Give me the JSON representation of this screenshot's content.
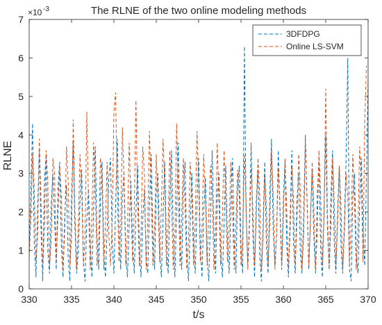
{
  "chart_data": {
    "type": "line",
    "title": "The RLNE of the two online modeling methods",
    "xlabel": "t/s",
    "ylabel": "RLNE",
    "y_multiplier": "×10",
    "y_multiplier_exp": "-3",
    "xlim": [
      330,
      370
    ],
    "ylim": [
      0,
      7
    ],
    "x_ticks": [
      330,
      335,
      340,
      345,
      350,
      355,
      360,
      365,
      370
    ],
    "y_ticks": [
      0,
      1,
      2,
      3,
      4,
      5,
      6,
      7
    ],
    "grid": false,
    "legend_position": "top-right",
    "series": [
      {
        "name": "3DFDPG",
        "color": "#0072BD",
        "line_style": "dashed",
        "x_start": 330,
        "x_step": 0.2,
        "values": [
          1.0,
          2.5,
          4.3,
          1.2,
          0.3,
          2.1,
          3.6,
          1.5,
          0.2,
          2.8,
          3.5,
          1.0,
          0.4,
          2.2,
          3.0,
          1.8,
          0.5,
          2.6,
          3.3,
          1.1,
          0.3,
          1.9,
          2.7,
          0.8,
          0.2,
          2.4,
          3.8,
          1.6,
          0.4,
          1.0,
          2.3,
          3.1,
          0.7,
          0.2,
          1.8,
          2.6,
          1.2,
          0.3,
          2.0,
          3.7,
          1.4,
          0.5,
          2.2,
          3.3,
          1.0,
          0.3,
          1.5,
          2.9,
          3.4,
          1.2,
          0.4,
          2.1,
          3.9,
          1.6,
          0.5,
          2.4,
          3.0,
          0.9,
          0.3,
          1.7,
          2.8,
          1.3,
          0.4,
          2.0,
          3.2,
          1.1,
          0.3,
          1.8,
          2.6,
          0.8,
          0.4,
          2.2,
          3.5,
          1.4,
          0.5,
          2.5,
          3.0,
          1.0,
          0.3,
          1.9,
          3.3,
          1.2,
          0.4,
          2.3,
          3.6,
          1.5,
          0.3,
          2.0,
          3.8,
          1.4,
          0.5,
          2.6,
          3.3,
          0.9,
          0.2,
          1.6,
          3.0,
          1.2,
          0.4,
          2.2,
          3.4,
          1.1,
          0.3,
          2.0,
          2.9,
          0.8,
          0.2,
          1.9,
          3.6,
          1.5,
          0.4,
          2.4,
          3.0,
          1.0,
          0.3,
          1.7,
          3.2,
          1.3,
          0.4,
          2.1,
          3.4,
          1.2,
          0.4,
          2.6,
          3.2,
          1.0,
          0.4,
          6.3,
          2.0,
          0.6,
          1.8,
          3.8,
          1.4,
          0.3,
          2.3,
          3.1,
          0.9,
          0.2,
          1.6,
          3.3,
          1.1,
          0.4,
          2.5,
          3.9,
          1.5,
          0.6,
          1.4,
          3.6,
          2.0,
          0.5,
          2.4,
          3.3,
          1.1,
          0.3,
          1.9,
          3.6,
          1.2,
          0.4,
          2.3,
          3.0,
          0.9,
          0.4,
          2.0,
          4.0,
          2.2,
          0.5,
          1.8,
          3.1,
          1.3,
          0.4,
          2.4,
          3.4,
          1.0,
          0.3,
          2.1,
          4.0,
          1.6,
          0.5,
          2.3,
          3.6,
          1.2,
          0.4,
          2.0,
          3.2,
          1.1,
          0.4,
          1.7,
          3.4,
          6.0,
          0.5,
          0.2,
          2.4,
          3.0,
          0.9,
          0.4,
          2.2,
          3.4,
          1.5,
          0.6,
          2.9,
          5.5,
          6.3
        ]
      },
      {
        "name": "Online LS-SVM",
        "color": "#D95319",
        "line_style": "dashed",
        "x_start": 330,
        "x_step": 0.2,
        "values": [
          0.8,
          1.8,
          3.5,
          2.6,
          0.7,
          1.4,
          3.9,
          2.2,
          0.5,
          1.6,
          3.6,
          2.8,
          0.6,
          1.2,
          3.4,
          3.0,
          0.7,
          1.9,
          3.2,
          2.4,
          0.5,
          1.5,
          3.7,
          2.8,
          0.6,
          1.3,
          4.4,
          2.0,
          0.5,
          1.7,
          3.5,
          2.6,
          0.6,
          1.4,
          4.6,
          2.3,
          0.5,
          1.9,
          3.8,
          2.7,
          0.6,
          1.1,
          3.4,
          2.9,
          0.5,
          1.7,
          3.3,
          1.4,
          0.6,
          1.8,
          4.6,
          5.1,
          2.5,
          0.7,
          1.6,
          4.2,
          2.8,
          0.6,
          1.5,
          3.8,
          2.4,
          0.7,
          2.0,
          4.9,
          2.2,
          0.6,
          1.4,
          3.7,
          3.0,
          0.5,
          1.8,
          4.1,
          2.5,
          0.6,
          1.6,
          3.5,
          2.3,
          0.7,
          2.1,
          3.9,
          2.7,
          0.6,
          1.7,
          3.6,
          2.2,
          0.5,
          1.5,
          4.3,
          2.6,
          0.6,
          1.9,
          3.4,
          2.1,
          0.5,
          1.3,
          3.3,
          2.5,
          0.6,
          1.8,
          4.1,
          2.8,
          0.7,
          1.6,
          3.5,
          2.4,
          0.6,
          2.0,
          3.2,
          2.6,
          0.5,
          1.5,
          3.8,
          2.2,
          0.6,
          1.9,
          3.6,
          2.3,
          0.7,
          1.6,
          3.3,
          2.0,
          0.5,
          1.7,
          3.1,
          2.4,
          0.6,
          1.4,
          3.5,
          2.2,
          0.5,
          1.6,
          3.2,
          2.0,
          0.6,
          1.9,
          3.4,
          2.5,
          0.5,
          1.3,
          3.0,
          2.1,
          0.6,
          1.7,
          3.6,
          2.4,
          0.5,
          1.4,
          3.1,
          2.2,
          0.6,
          1.8,
          3.4,
          2.0,
          0.5,
          1.5,
          3.2,
          2.3,
          0.6,
          1.7,
          3.5,
          2.6,
          0.5,
          1.4,
          3.9,
          2.2,
          0.6,
          1.8,
          3.3,
          2.1,
          0.5,
          1.5,
          3.6,
          2.4,
          0.6,
          1.9,
          5.2,
          2.0,
          0.5,
          1.6,
          3.4,
          2.3,
          0.6,
          1.7,
          3.2,
          2.1,
          0.5,
          1.4,
          3.0,
          2.4,
          0.6,
          1.8,
          3.5,
          2.2,
          0.5,
          1.6,
          3.7,
          2.8,
          0.7,
          4.3,
          5.8
        ]
      }
    ]
  }
}
